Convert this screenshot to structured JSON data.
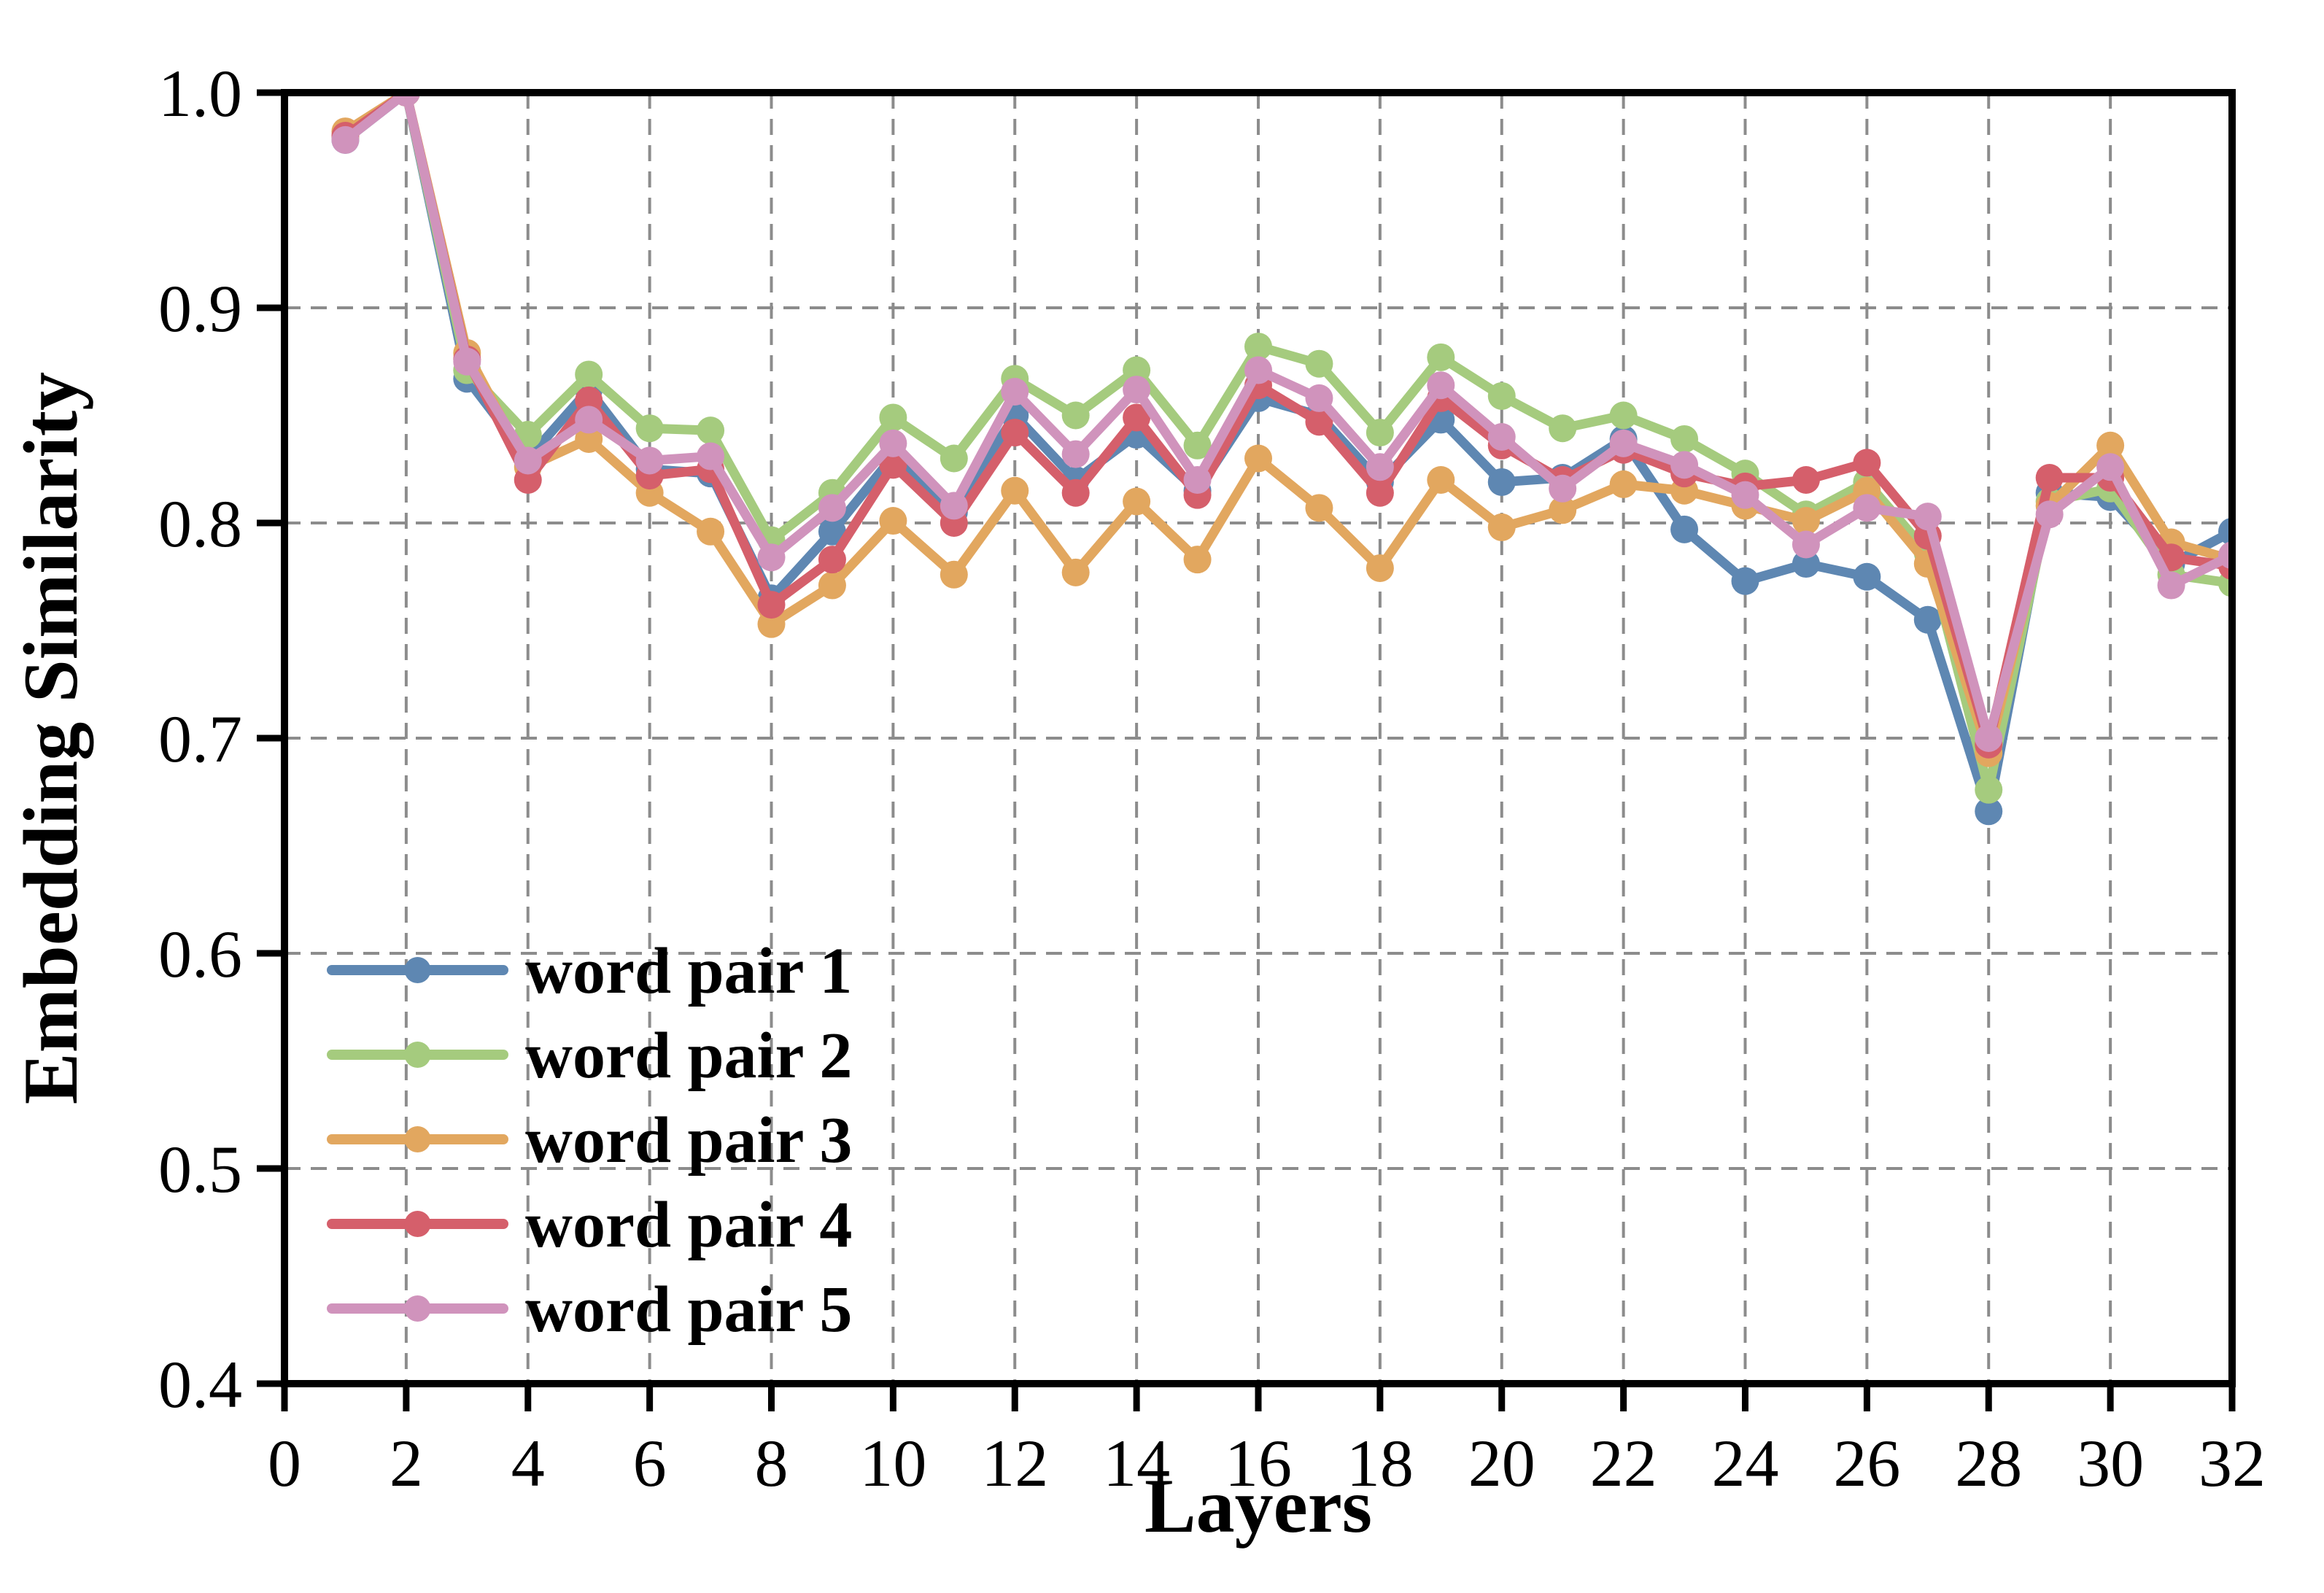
{
  "figure": {
    "background": "#ffffff",
    "grid_color": "#8c8c8c",
    "spine_color": "#000000"
  },
  "chart_data": {
    "type": "line",
    "title": "",
    "xlabel": "Layers",
    "ylabel": "Embedding Similarity",
    "xlim": [
      0,
      32
    ],
    "ylim": [
      0.4,
      1.0
    ],
    "grid": "dashed",
    "legend_position": "lower-left",
    "x_ticks": [
      0,
      2,
      4,
      6,
      8,
      10,
      12,
      14,
      16,
      18,
      20,
      22,
      24,
      26,
      28,
      30,
      32
    ],
    "x_tick_labels": [
      "0",
      "2",
      "4",
      "6",
      "8",
      "10",
      "12",
      "14",
      "16",
      "18",
      "20",
      "22",
      "24",
      "26",
      "28",
      "30",
      "32"
    ],
    "y_ticks": [
      0.4,
      0.5,
      0.6,
      0.7,
      0.8,
      0.9,
      1.0
    ],
    "y_tick_labels": [
      "0.4",
      "0.5",
      "0.6",
      "0.7",
      "0.8",
      "0.9",
      "1.0"
    ],
    "x": [
      1,
      2,
      3,
      4,
      5,
      6,
      7,
      8,
      9,
      10,
      11,
      12,
      13,
      14,
      15,
      16,
      17,
      18,
      19,
      20,
      21,
      22,
      23,
      24,
      25,
      26,
      27,
      28,
      29,
      30,
      31,
      32
    ],
    "series": [
      {
        "name": "word pair 1",
        "color": "#5E87B2",
        "values": [
          0.978,
          1.0,
          0.867,
          0.83,
          0.862,
          0.825,
          0.823,
          0.765,
          0.796,
          0.831,
          0.805,
          0.85,
          0.82,
          0.841,
          0.815,
          0.858,
          0.85,
          0.819,
          0.848,
          0.819,
          0.821,
          0.839,
          0.797,
          0.773,
          0.781,
          0.775,
          0.755,
          0.666,
          0.814,
          0.812,
          0.781,
          0.796
        ]
      },
      {
        "name": "word pair 2",
        "color": "#A5CB7E",
        "values": [
          0.979,
          1.0,
          0.871,
          0.841,
          0.869,
          0.844,
          0.843,
          0.792,
          0.814,
          0.849,
          0.83,
          0.867,
          0.85,
          0.871,
          0.836,
          0.882,
          0.874,
          0.842,
          0.877,
          0.859,
          0.844,
          0.85,
          0.839,
          0.823,
          0.804,
          0.819,
          0.786,
          0.676,
          0.81,
          0.816,
          0.776,
          0.772
        ]
      },
      {
        "name": "word pair 3",
        "color": "#E2A75F",
        "values": [
          0.982,
          1.0,
          0.879,
          0.826,
          0.839,
          0.814,
          0.796,
          0.753,
          0.771,
          0.801,
          0.776,
          0.815,
          0.777,
          0.81,
          0.783,
          0.83,
          0.807,
          0.779,
          0.82,
          0.798,
          0.806,
          0.818,
          0.815,
          0.808,
          0.801,
          0.815,
          0.781,
          0.693,
          0.808,
          0.836,
          0.791,
          0.783
        ]
      },
      {
        "name": "word pair 4",
        "color": "#D55F6B",
        "values": [
          0.98,
          1.0,
          0.876,
          0.82,
          0.857,
          0.822,
          0.825,
          0.762,
          0.783,
          0.827,
          0.8,
          0.842,
          0.814,
          0.849,
          0.813,
          0.864,
          0.847,
          0.814,
          0.858,
          0.836,
          0.82,
          0.834,
          0.823,
          0.817,
          0.82,
          0.828,
          0.794,
          0.697,
          0.821,
          0.821,
          0.784,
          0.78
        ]
      },
      {
        "name": "word pair 5",
        "color": "#D093BC",
        "values": [
          0.978,
          1.0,
          0.875,
          0.829,
          0.848,
          0.829,
          0.831,
          0.784,
          0.807,
          0.837,
          0.808,
          0.861,
          0.832,
          0.862,
          0.82,
          0.871,
          0.858,
          0.826,
          0.864,
          0.84,
          0.816,
          0.837,
          0.827,
          0.813,
          0.79,
          0.807,
          0.803,
          0.7,
          0.804,
          0.826,
          0.771,
          0.785
        ]
      }
    ]
  }
}
